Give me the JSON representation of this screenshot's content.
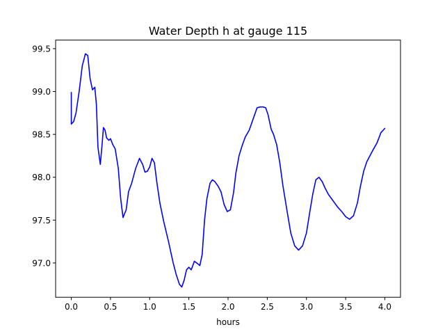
{
  "chart_data": {
    "type": "line",
    "title": "Water Depth h at gauge 115",
    "xlabel": "hours",
    "ylabel": "",
    "xlim": [
      -0.2,
      4.2
    ],
    "ylim": [
      96.6,
      99.6
    ],
    "xticks": [
      0.0,
      0.5,
      1.0,
      1.5,
      2.0,
      2.5,
      3.0,
      3.5,
      4.0
    ],
    "xtick_labels": [
      "0.0",
      "0.5",
      "1.0",
      "1.5",
      "2.0",
      "2.5",
      "3.0",
      "3.5",
      "4.0"
    ],
    "yticks": [
      97.0,
      97.5,
      98.0,
      98.5,
      99.0,
      99.5
    ],
    "ytick_labels": [
      "97.0",
      "97.5",
      "98.0",
      "98.5",
      "99.0",
      "99.5"
    ],
    "grid": false,
    "legend": "none",
    "series": [
      {
        "color": "#0000ff",
        "x": [
          0.0,
          0.0,
          0.03,
          0.06,
          0.1,
          0.14,
          0.18,
          0.21,
          0.24,
          0.27,
          0.3,
          0.32,
          0.34,
          0.37,
          0.39,
          0.41,
          0.43,
          0.45,
          0.48,
          0.5,
          0.53,
          0.56,
          0.6,
          0.63,
          0.66,
          0.7,
          0.73,
          0.77,
          0.82,
          0.87,
          0.91,
          0.94,
          0.97,
          1.0,
          1.03,
          1.06,
          1.09,
          1.13,
          1.18,
          1.24,
          1.3,
          1.34,
          1.38,
          1.41,
          1.44,
          1.47,
          1.5,
          1.53,
          1.57,
          1.6,
          1.64,
          1.67,
          1.7,
          1.73,
          1.77,
          1.8,
          1.83,
          1.87,
          1.91,
          1.95,
          1.99,
          2.03,
          2.07,
          2.1,
          2.14,
          2.18,
          2.22,
          2.27,
          2.32,
          2.37,
          2.41,
          2.45,
          2.48,
          2.51,
          2.55,
          2.58,
          2.62,
          2.66,
          2.7,
          2.75,
          2.8,
          2.85,
          2.9,
          2.95,
          3.0,
          3.04,
          3.08,
          3.12,
          3.16,
          3.2,
          3.24,
          3.28,
          3.32,
          3.36,
          3.4,
          3.45,
          3.5,
          3.55,
          3.6,
          3.65,
          3.69,
          3.73,
          3.77,
          3.81,
          3.85,
          3.9,
          3.95,
          4.0
        ],
        "y": [
          98.99,
          98.62,
          98.65,
          98.75,
          99.0,
          99.3,
          99.44,
          99.42,
          99.15,
          99.02,
          99.05,
          98.85,
          98.35,
          98.15,
          98.35,
          98.58,
          98.55,
          98.46,
          98.43,
          98.45,
          98.38,
          98.33,
          98.1,
          97.75,
          97.53,
          97.62,
          97.83,
          97.93,
          98.1,
          98.22,
          98.15,
          98.06,
          98.07,
          98.12,
          98.22,
          98.17,
          97.95,
          97.7,
          97.48,
          97.25,
          97.0,
          96.86,
          96.75,
          96.72,
          96.8,
          96.92,
          96.95,
          96.92,
          97.02,
          97.0,
          96.97,
          97.1,
          97.5,
          97.75,
          97.93,
          97.97,
          97.95,
          97.9,
          97.83,
          97.68,
          97.6,
          97.62,
          97.82,
          98.05,
          98.25,
          98.37,
          98.47,
          98.55,
          98.68,
          98.81,
          98.82,
          98.82,
          98.81,
          98.73,
          98.56,
          98.5,
          98.38,
          98.17,
          97.9,
          97.62,
          97.35,
          97.2,
          97.15,
          97.2,
          97.35,
          97.58,
          97.8,
          97.97,
          98.0,
          97.95,
          97.87,
          97.8,
          97.75,
          97.7,
          97.65,
          97.6,
          97.54,
          97.51,
          97.55,
          97.7,
          97.9,
          98.07,
          98.18,
          98.25,
          98.32,
          98.4,
          98.52,
          98.57
        ]
      }
    ]
  }
}
